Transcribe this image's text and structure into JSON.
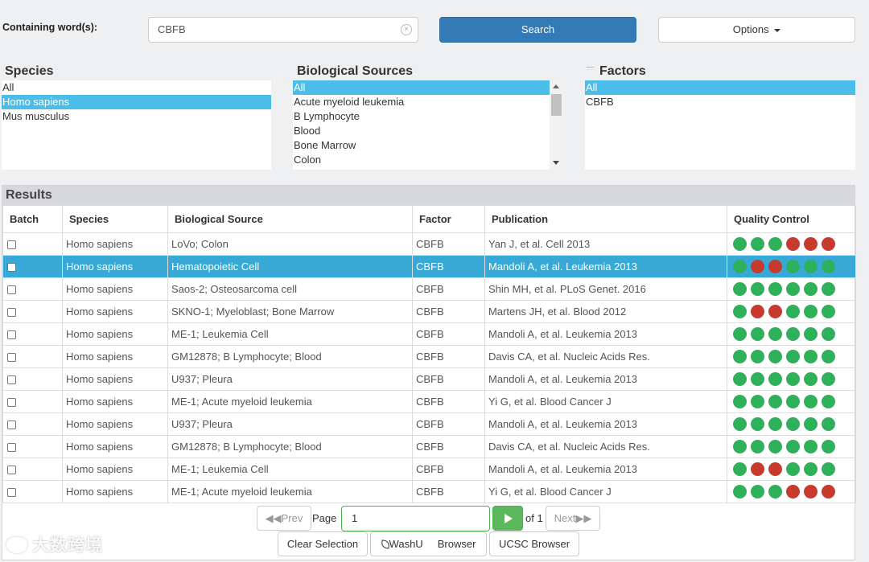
{
  "search": {
    "label": "Containing word(s):",
    "value": "CBFB",
    "button": "Search",
    "options_button": "Options"
  },
  "species": {
    "title": "Species",
    "items": [
      "All",
      "Homo sapiens",
      "Mus musculus"
    ],
    "selected": "Homo sapiens"
  },
  "bio_sources": {
    "title": "Biological Sources",
    "items": [
      "All",
      "Acute myeloid leukemia",
      "B Lymphocyte",
      "Blood",
      "Bone Marrow",
      "Colon"
    ],
    "selected": "All"
  },
  "factors": {
    "title": "Factors",
    "items": [
      "All",
      "CBFB"
    ],
    "selected": "All"
  },
  "results": {
    "title": "Results",
    "columns": [
      "Batch",
      "Species",
      "Biological Source",
      "Factor",
      "Publication",
      "Quality Control"
    ],
    "rows": [
      {
        "species": "Homo sapiens",
        "source": "LoVo; Colon",
        "factor": "CBFB",
        "publication": "Yan J, et al. Cell 2013",
        "qc": [
          "g",
          "g",
          "g",
          "r",
          "r",
          "r"
        ],
        "selected": false
      },
      {
        "species": "Homo sapiens",
        "source": "Hematopoietic Cell",
        "factor": "CBFB",
        "publication": "Mandoli A, et al. Leukemia 2013",
        "qc": [
          "g",
          "r",
          "r",
          "g",
          "g",
          "g"
        ],
        "selected": true
      },
      {
        "species": "Homo sapiens",
        "source": "Saos-2; Osteosarcoma cell",
        "factor": "CBFB",
        "publication": "Shin MH, et al. PLoS Genet. 2016",
        "qc": [
          "g",
          "g",
          "g",
          "g",
          "g",
          "g"
        ],
        "selected": false
      },
      {
        "species": "Homo sapiens",
        "source": "SKNO-1; Myeloblast; Bone Marrow",
        "factor": "CBFB",
        "publication": "Martens JH, et al. Blood 2012",
        "qc": [
          "g",
          "r",
          "r",
          "g",
          "g",
          "g"
        ],
        "selected": false
      },
      {
        "species": "Homo sapiens",
        "source": "ME-1; Leukemia Cell",
        "factor": "CBFB",
        "publication": "Mandoli A, et al. Leukemia 2013",
        "qc": [
          "g",
          "g",
          "g",
          "g",
          "g",
          "g"
        ],
        "selected": false
      },
      {
        "species": "Homo sapiens",
        "source": "GM12878; B Lymphocyte; Blood",
        "factor": "CBFB",
        "publication": "Davis CA, et al. Nucleic Acids Res.",
        "qc": [
          "g",
          "g",
          "g",
          "g",
          "g",
          "g"
        ],
        "selected": false
      },
      {
        "species": "Homo sapiens",
        "source": "U937; Pleura",
        "factor": "CBFB",
        "publication": "Mandoli A, et al. Leukemia 2013",
        "qc": [
          "g",
          "g",
          "g",
          "g",
          "g",
          "g"
        ],
        "selected": false
      },
      {
        "species": "Homo sapiens",
        "source": "ME-1; Acute myeloid leukemia",
        "factor": "CBFB",
        "publication": "Yi G, et al. Blood Cancer J",
        "qc": [
          "g",
          "g",
          "g",
          "g",
          "g",
          "g"
        ],
        "selected": false
      },
      {
        "species": "Homo sapiens",
        "source": "U937; Pleura",
        "factor": "CBFB",
        "publication": "Mandoli A, et al. Leukemia 2013",
        "qc": [
          "g",
          "g",
          "g",
          "g",
          "g",
          "g"
        ],
        "selected": false
      },
      {
        "species": "Homo sapiens",
        "source": "GM12878; B Lymphocyte; Blood",
        "factor": "CBFB",
        "publication": "Davis CA, et al. Nucleic Acids Res.",
        "qc": [
          "g",
          "g",
          "g",
          "g",
          "g",
          "g"
        ],
        "selected": false
      },
      {
        "species": "Homo sapiens",
        "source": "ME-1; Leukemia Cell",
        "factor": "CBFB",
        "publication": "Mandoli A, et al. Leukemia 2013",
        "qc": [
          "g",
          "r",
          "r",
          "g",
          "g",
          "g"
        ],
        "selected": false
      },
      {
        "species": "Homo sapiens",
        "source": "ME-1; Acute myeloid leukemia",
        "factor": "CBFB",
        "publication": "Yi G, et al. Blood Cancer J",
        "qc": [
          "g",
          "g",
          "g",
          "r",
          "r",
          "r"
        ],
        "selected": false
      }
    ]
  },
  "pager": {
    "prev": "Prev",
    "page_label": "Page",
    "page_value": "1",
    "of_label": "of 1",
    "next": "Next"
  },
  "actions": {
    "clear": "Clear Selection",
    "washu": "WashU",
    "washu_browser": "Browser",
    "ucsc": "UCSC Browser"
  },
  "watermark": "大数跨境",
  "colors": {
    "primary": "#337ab7",
    "selected": "#4cbde8",
    "row_selected": "#38a8d7",
    "qc_good": "#2fb05a",
    "qc_bad": "#c93a2e",
    "go": "#5cb85c"
  }
}
